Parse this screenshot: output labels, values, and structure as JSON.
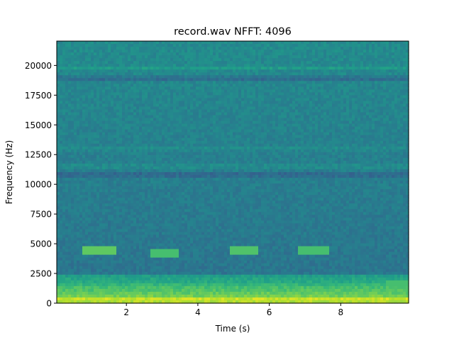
{
  "chart_data": {
    "type": "heatmap",
    "title": "record.wav  NFFT: 4096",
    "xlabel": "Time (s)",
    "ylabel": "Frequency (Hz)",
    "xlim": [
      0.05,
      9.9
    ],
    "ylim": [
      0,
      22050
    ],
    "x_ticks": [
      2,
      4,
      6,
      8
    ],
    "x_tick_labels": [
      "2",
      "4",
      "6",
      "8"
    ],
    "y_ticks": [
      0,
      2500,
      5000,
      7500,
      10000,
      12500,
      15000,
      17500,
      20000
    ],
    "y_tick_labels": [
      "0",
      "2500",
      "5000",
      "7500",
      "10000",
      "12500",
      "15000",
      "17500",
      "20000"
    ],
    "colormap": "viridis",
    "grid": false,
    "legend": "none",
    "bands": [
      {
        "freq": 300,
        "level": 0.95
      },
      {
        "freq": 1200,
        "level": 0.72
      },
      {
        "freq": 1800,
        "level": 0.6
      },
      {
        "freq": 10800,
        "level": 0.28
      },
      {
        "freq": 11500,
        "level": 0.52
      },
      {
        "freq": 13000,
        "level": 0.5
      },
      {
        "freq": 18900,
        "level": 0.3
      },
      {
        "freq": 19800,
        "level": 0.55
      },
      {
        "freq": 21300,
        "level": 0.48
      }
    ],
    "events": [
      {
        "t_start": 0.8,
        "t_end": 1.7,
        "freq": 4400,
        "level": 0.75
      },
      {
        "t_start": 2.7,
        "t_end": 3.5,
        "freq": 4300,
        "level": 0.7
      },
      {
        "t_start": 4.9,
        "t_end": 5.7,
        "freq": 4400,
        "level": 0.72
      },
      {
        "t_start": 6.8,
        "t_end": 7.7,
        "freq": 4400,
        "level": 0.7
      },
      {
        "t_start": 9.3,
        "t_end": 9.9,
        "freq": 1500,
        "level": 0.7
      }
    ]
  }
}
